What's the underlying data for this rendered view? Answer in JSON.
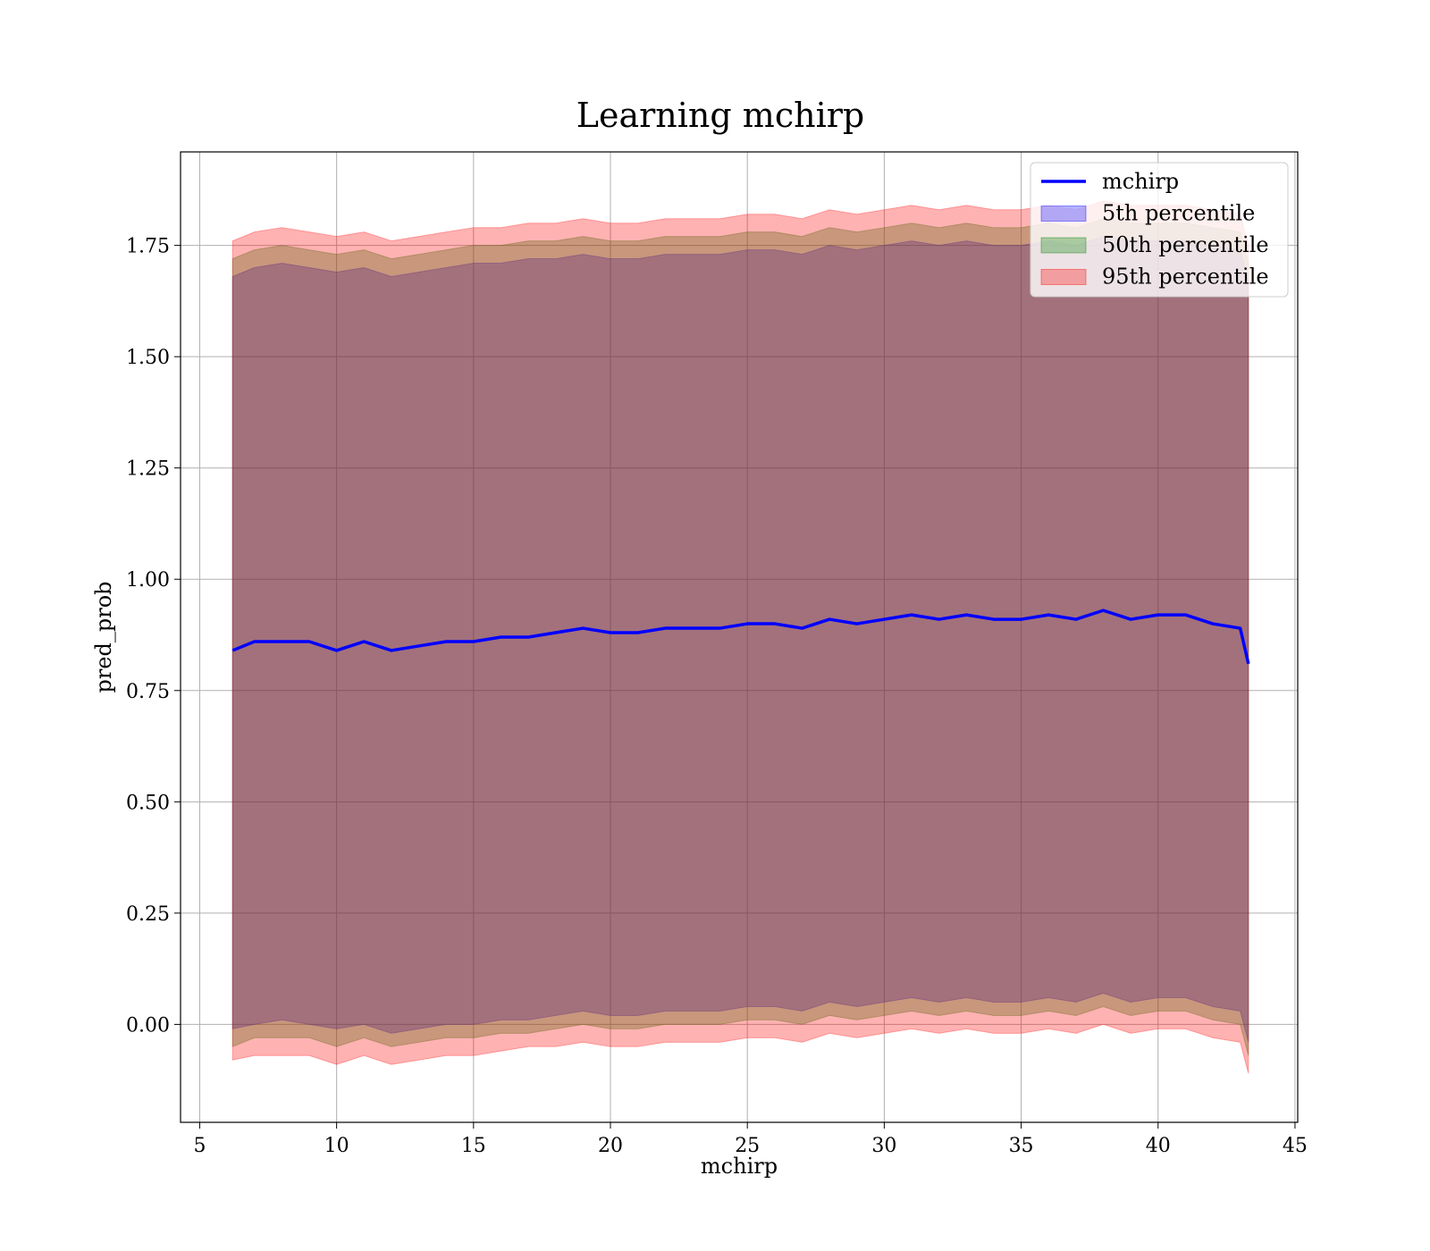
{
  "chart_data": {
    "type": "line",
    "title": "Learning mchirp",
    "xlabel": "mchirp",
    "ylabel": "pred_prob",
    "xlim": [
      4.3,
      45.1
    ],
    "ylim": [
      -0.22,
      1.96
    ],
    "xticks": [
      5,
      10,
      15,
      20,
      25,
      30,
      35,
      40,
      45
    ],
    "xtick_labels": [
      "5",
      "10",
      "15",
      "20",
      "25",
      "30",
      "35",
      "40",
      "45"
    ],
    "yticks": [
      0.0,
      0.25,
      0.5,
      0.75,
      1.0,
      1.25,
      1.5,
      1.75
    ],
    "ytick_labels": [
      "0.00",
      "0.25",
      "0.50",
      "0.75",
      "1.00",
      "1.25",
      "1.50",
      "1.75"
    ],
    "grid": true,
    "legend_position": "top-right",
    "x": [
      6.2,
      7.0,
      8.0,
      9.0,
      10.0,
      11.0,
      12.0,
      13.0,
      14.0,
      15.0,
      16.0,
      17.0,
      18.0,
      19.0,
      20.0,
      21.0,
      22.0,
      23.0,
      24.0,
      25.0,
      26.0,
      27.0,
      28.0,
      29.0,
      30.0,
      31.0,
      32.0,
      33.0,
      34.0,
      35.0,
      36.0,
      37.0,
      38.0,
      39.0,
      40.0,
      41.0,
      42.0,
      43.0,
      43.3
    ],
    "series": [
      {
        "name": "mchirp",
        "kind": "line",
        "color": "#0000ff",
        "values": [
          0.84,
          0.86,
          0.86,
          0.86,
          0.84,
          0.86,
          0.84,
          0.85,
          0.86,
          0.86,
          0.87,
          0.87,
          0.88,
          0.89,
          0.88,
          0.88,
          0.89,
          0.89,
          0.89,
          0.9,
          0.9,
          0.89,
          0.91,
          0.9,
          0.91,
          0.92,
          0.91,
          0.92,
          0.91,
          0.91,
          0.92,
          0.91,
          0.93,
          0.91,
          0.92,
          0.92,
          0.9,
          0.89,
          0.81
        ]
      },
      {
        "name": "5th percentile",
        "kind": "band",
        "color": "#0000ff",
        "lower": [
          -0.01,
          0.0,
          0.01,
          0.0,
          -0.01,
          0.0,
          -0.02,
          -0.01,
          0.0,
          0.0,
          0.01,
          0.01,
          0.02,
          0.03,
          0.02,
          0.02,
          0.03,
          0.03,
          0.03,
          0.04,
          0.04,
          0.03,
          0.05,
          0.04,
          0.05,
          0.06,
          0.05,
          0.06,
          0.05,
          0.05,
          0.06,
          0.05,
          0.07,
          0.05,
          0.06,
          0.06,
          0.04,
          0.03,
          -0.04
        ],
        "upper": [
          1.68,
          1.7,
          1.71,
          1.7,
          1.69,
          1.7,
          1.68,
          1.69,
          1.7,
          1.71,
          1.71,
          1.72,
          1.72,
          1.73,
          1.72,
          1.72,
          1.73,
          1.73,
          1.73,
          1.74,
          1.74,
          1.73,
          1.75,
          1.74,
          1.75,
          1.76,
          1.75,
          1.76,
          1.75,
          1.75,
          1.76,
          1.75,
          1.77,
          1.76,
          1.76,
          1.76,
          1.75,
          1.74,
          1.67
        ]
      },
      {
        "name": "50th percentile",
        "kind": "band",
        "color": "#008000",
        "lower": [
          -0.05,
          -0.03,
          -0.03,
          -0.03,
          -0.05,
          -0.03,
          -0.05,
          -0.04,
          -0.03,
          -0.03,
          -0.02,
          -0.02,
          -0.01,
          0.0,
          -0.01,
          -0.01,
          0.0,
          0.0,
          0.0,
          0.01,
          0.01,
          0.0,
          0.02,
          0.01,
          0.02,
          0.03,
          0.02,
          0.03,
          0.02,
          0.02,
          0.03,
          0.02,
          0.04,
          0.02,
          0.03,
          0.03,
          0.01,
          0.0,
          -0.07
        ],
        "upper": [
          1.72,
          1.74,
          1.75,
          1.74,
          1.73,
          1.74,
          1.72,
          1.73,
          1.74,
          1.75,
          1.75,
          1.76,
          1.76,
          1.77,
          1.76,
          1.76,
          1.77,
          1.77,
          1.77,
          1.78,
          1.78,
          1.77,
          1.79,
          1.78,
          1.79,
          1.8,
          1.79,
          1.8,
          1.79,
          1.79,
          1.8,
          1.79,
          1.81,
          1.8,
          1.8,
          1.8,
          1.79,
          1.78,
          1.71
        ]
      },
      {
        "name": "95th percentile",
        "kind": "band",
        "color": "#ff0000",
        "lower": [
          -0.08,
          -0.07,
          -0.07,
          -0.07,
          -0.09,
          -0.07,
          -0.09,
          -0.08,
          -0.07,
          -0.07,
          -0.06,
          -0.05,
          -0.05,
          -0.04,
          -0.05,
          -0.05,
          -0.04,
          -0.04,
          -0.04,
          -0.03,
          -0.03,
          -0.04,
          -0.02,
          -0.03,
          -0.02,
          -0.01,
          -0.02,
          -0.01,
          -0.02,
          -0.02,
          -0.01,
          -0.02,
          0.0,
          -0.02,
          -0.01,
          -0.01,
          -0.03,
          -0.04,
          -0.11
        ],
        "upper": [
          1.76,
          1.78,
          1.79,
          1.78,
          1.77,
          1.78,
          1.76,
          1.77,
          1.78,
          1.79,
          1.79,
          1.8,
          1.8,
          1.81,
          1.8,
          1.8,
          1.81,
          1.81,
          1.81,
          1.82,
          1.82,
          1.81,
          1.83,
          1.82,
          1.83,
          1.84,
          1.83,
          1.84,
          1.83,
          1.83,
          1.84,
          1.83,
          1.85,
          1.84,
          1.84,
          1.84,
          1.83,
          1.82,
          1.75
        ]
      }
    ]
  }
}
